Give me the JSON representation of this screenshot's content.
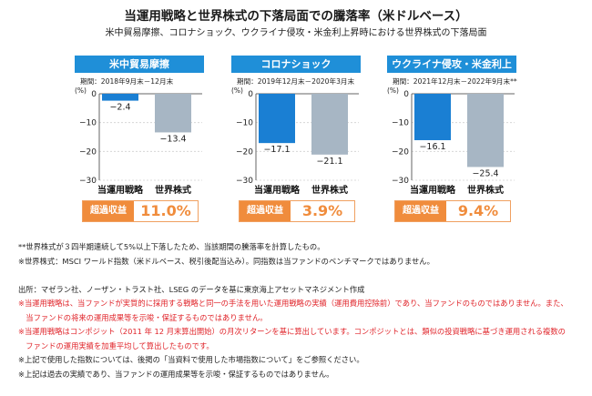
{
  "title": "当運用戦略と世界株式の下落局面での騰落率（米ドルベース）",
  "subtitle": "米中貿易摩擦、コロナショック、ウクライナ侵攻・米金利上昇時における世界株式の下落局面",
  "y_unit": "(%)",
  "excess_label": "超過収益",
  "chart_data": [
    {
      "type": "bar",
      "title": "米中貿易摩擦",
      "period": "期間：2018年9月末－12月末",
      "categories": [
        "当運用戦略",
        "世界株式"
      ],
      "values": [
        -2.4,
        -13.4
      ],
      "value_labels": [
        "−2.4",
        "−13.4"
      ],
      "ylim": [
        -30,
        0
      ],
      "yticks": [
        0,
        -10,
        -20,
        -30
      ],
      "ytick_labels": [
        "0",
        "−10",
        "−20",
        "−30"
      ],
      "colors": [
        "#1a7fd3",
        "#a7b6c4"
      ],
      "excess": "11.0%"
    },
    {
      "type": "bar",
      "title": "コロナショック",
      "period": "期間：2019年12月末－2020年3月末",
      "categories": [
        "当運用戦略",
        "世界株式"
      ],
      "values": [
        -17.1,
        -21.1
      ],
      "value_labels": [
        "−17.1",
        "−21.1"
      ],
      "ylim": [
        -30,
        0
      ],
      "yticks": [
        0,
        -10,
        -20,
        -30
      ],
      "ytick_labels": [
        "0",
        "−10",
        "−20",
        "−30"
      ],
      "colors": [
        "#1a7fd3",
        "#a7b6c4"
      ],
      "excess": "3.9%"
    },
    {
      "type": "bar",
      "title": "ウクライナ侵攻・米金利上昇",
      "period": "期間：2021年12月末－2022年9月末**",
      "categories": [
        "当運用戦略",
        "世界株式"
      ],
      "values": [
        -16.1,
        -25.4
      ],
      "value_labels": [
        "−16.1",
        "−25.4"
      ],
      "ylim": [
        -30,
        0
      ],
      "yticks": [
        0,
        -10,
        -20,
        -30
      ],
      "ytick_labels": [
        "0",
        "−10",
        "−20",
        "−30"
      ],
      "colors": [
        "#1a7fd3",
        "#a7b6c4"
      ],
      "excess": "9.4%"
    }
  ],
  "notes": [
    {
      "style": "dark",
      "text": "**世界株式が３四半期連続して5%以上下落したため、当該期間の騰落率を計算したもの。"
    },
    {
      "style": "dark",
      "text": "※世界株式：MSCI ワールド指数（米ドルベース、税引後配当込み）。同指数は当ファンドのベンチマークではありません。"
    },
    {
      "style": "dark",
      "text": ""
    },
    {
      "style": "dark",
      "text": "出所：マゼラン社、ノーザン・トラスト社、LSEG のデータを基に東京海上アセットマネジメント作成"
    },
    {
      "style": "red",
      "text": "※当運用戦略は、当ファンドが実質的に採用する戦略と同一の手法を用いた運用戦略の実績（運用費用控除前）であり、当ファンドのものではありません。また、"
    },
    {
      "style": "red",
      "text": "　当ファンドの将来の運用成果等を示唆・保証するものではありません。"
    },
    {
      "style": "red",
      "text": "※当運用戦略はコンポジット（2011 年 12 月末算出開始）の月次リターンを基に算出しています。コンポジットとは、類似の投資戦略に基づき運用される複数の"
    },
    {
      "style": "red",
      "text": "　ファンドの運用実績を加重平均して算出したものです。"
    },
    {
      "style": "dark",
      "text": "※上記で使用した指数については、後掲の「当資料で使用した市場指数について」をご参照ください。"
    },
    {
      "style": "dark",
      "text": "※上記は過去の実績であり、当ファンドの運用成果等を示唆・保証するものではありません。"
    }
  ]
}
